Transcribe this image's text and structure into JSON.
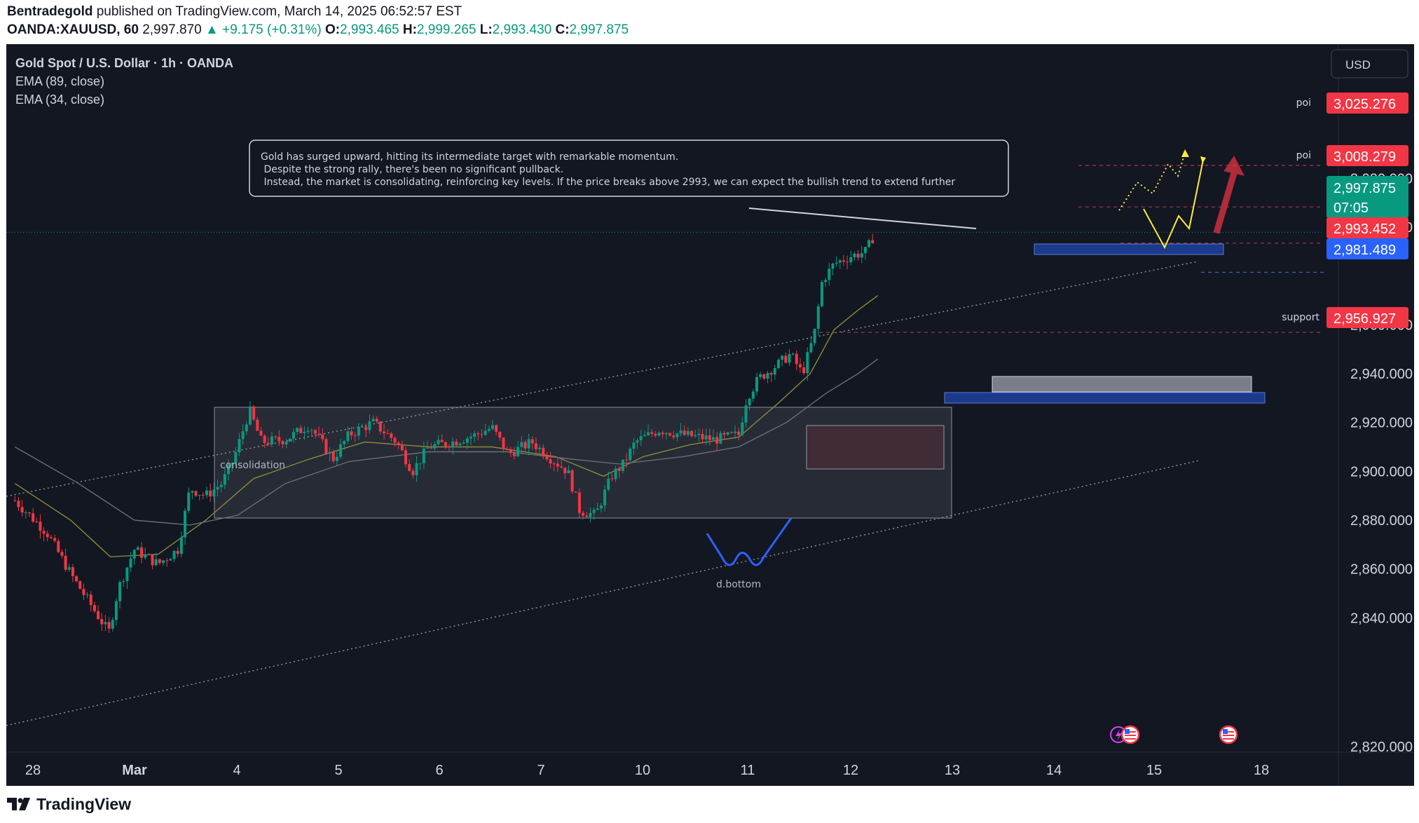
{
  "header": {
    "author": "Bentradegold",
    "published_text": "published on TradingView.com, March 14, 2025 06:52:57 EST",
    "symbol": "OANDA:XAUUSD, 60",
    "last": "2,997.870",
    "change": "▲ +9.175 (+0.31%)",
    "o_label": "O:",
    "o": "2,993.465",
    "h_label": "H:",
    "h": "2,999.265",
    "l_label": "L:",
    "l": "2,993.430",
    "c_label": "C:",
    "c": "2,997.875"
  },
  "legend": {
    "title": "Gold Spot / U.S. Dollar · 1h · OANDA",
    "ema1": "EMA (89, close)",
    "ema2": "EMA (34, close)"
  },
  "currency_button": "USD",
  "annotation": {
    "lines": [
      "Gold has surged upward, hitting its intermediate target with remarkable momentum.",
      " Despite the strong rally, there's been no significant pullback.",
      " Instead, the market is consolidating, reinforcing key levels. If the price breaks above 2993, we can expect the bullish trend to extend further"
    ]
  },
  "labels": {
    "consolidation": "consolidation",
    "d_bottom": "d.bottom",
    "poi1": "poi",
    "poi2": "poi",
    "support": "support"
  },
  "price_tags": {
    "poi_upper": "3,025.276",
    "poi_lower": "3,008.279",
    "current": "2,997.875",
    "countdown": "07:05",
    "level_2993": "2,993.452",
    "level_2981": "2,981.489",
    "support": "2,956.927"
  },
  "colors": {
    "background": "#131722",
    "up": "#089981",
    "down": "#f23645",
    "blue_zone": "#2962ff",
    "yellow_path": "#ffeb3b"
  },
  "footer": {
    "brand": "TradingView"
  },
  "chart_data": {
    "type": "candlestick",
    "title": "Gold Spot / U.S. Dollar · 1h · OANDA",
    "ylim": [
      2820,
      3030
    ],
    "y_ticks": [
      2840,
      2860,
      2880,
      2900,
      2920,
      2940
    ],
    "y_tick_labels": [
      "2,840.000",
      "2,860.000",
      "2,880.000",
      "2,900.000",
      "2,920.000",
      "2,940.000"
    ],
    "partial_tick_labels": [
      {
        "text": "3,020.000",
        "value": 3020
      },
      {
        "text": "3,000.000",
        "value": 3000
      },
      {
        "text": "2,960.000",
        "value": 2960
      },
      {
        "text": "2,820.000",
        "value": 2820
      }
    ],
    "x_ticks": [
      {
        "label": "28",
        "day": 0
      },
      {
        "label": "Mar",
        "day": 1
      },
      {
        "label": "4",
        "day": 2
      },
      {
        "label": "5",
        "day": 3
      },
      {
        "label": "6",
        "day": 4
      },
      {
        "label": "7",
        "day": 5
      },
      {
        "label": "10",
        "day": 6
      },
      {
        "label": "11",
        "day": 7
      },
      {
        "label": "12",
        "day": 8
      },
      {
        "label": "13",
        "day": 9
      },
      {
        "label": "14",
        "day": 10
      },
      {
        "label": "15",
        "day": 11
      },
      {
        "label": "18",
        "day": 12
      }
    ],
    "price_path": [
      [
        -0.2,
        2888
      ],
      [
        0.2,
        2875
      ],
      [
        0.5,
        2858
      ],
      [
        0.8,
        2843
      ],
      [
        0.98,
        2834
      ],
      [
        1.1,
        2852
      ],
      [
        1.3,
        2868
      ],
      [
        1.6,
        2862
      ],
      [
        1.85,
        2868
      ],
      [
        2.0,
        2893
      ],
      [
        2.2,
        2890
      ],
      [
        2.4,
        2895
      ],
      [
        2.55,
        2905
      ],
      [
        2.75,
        2925
      ],
      [
        2.9,
        2912
      ],
      [
        3.2,
        2913
      ],
      [
        3.5,
        2919
      ],
      [
        3.8,
        2905
      ],
      [
        4.0,
        2915
      ],
      [
        4.3,
        2920
      ],
      [
        4.6,
        2912
      ],
      [
        4.8,
        2900
      ],
      [
        5.0,
        2910
      ],
      [
        5.3,
        2912
      ],
      [
        5.6,
        2915
      ],
      [
        5.8,
        2918
      ],
      [
        6.0,
        2907
      ],
      [
        6.3,
        2912
      ],
      [
        6.55,
        2905
      ],
      [
        6.75,
        2900
      ],
      [
        6.9,
        2884
      ],
      [
        7.1,
        2882
      ],
      [
        7.3,
        2898
      ],
      [
        7.45,
        2903
      ],
      [
        7.6,
        2912
      ],
      [
        7.9,
        2917
      ],
      [
        8.2,
        2915
      ],
      [
        8.6,
        2913
      ],
      [
        8.9,
        2915
      ],
      [
        9.0,
        2930
      ],
      [
        9.15,
        2938
      ],
      [
        9.4,
        2944
      ],
      [
        9.55,
        2948
      ],
      [
        9.7,
        2940
      ],
      [
        9.85,
        2956
      ],
      [
        9.95,
        2978
      ],
      [
        10.1,
        2985
      ],
      [
        10.3,
        2988
      ],
      [
        10.5,
        2990
      ],
      [
        10.62,
        2998
      ]
    ],
    "ema_34": [
      [
        -0.2,
        2895
      ],
      [
        0.5,
        2880
      ],
      [
        1.0,
        2865
      ],
      [
        1.6,
        2866
      ],
      [
        2.2,
        2880
      ],
      [
        2.8,
        2897
      ],
      [
        3.5,
        2905
      ],
      [
        4.2,
        2912
      ],
      [
        5.0,
        2910
      ],
      [
        5.8,
        2910
      ],
      [
        6.6,
        2906
      ],
      [
        7.2,
        2898
      ],
      [
        7.7,
        2906
      ],
      [
        8.3,
        2911
      ],
      [
        8.9,
        2914
      ],
      [
        9.4,
        2928
      ],
      [
        9.8,
        2940
      ],
      [
        10.1,
        2958
      ],
      [
        10.4,
        2966
      ],
      [
        10.65,
        2972
      ]
    ],
    "ema_89": [
      [
        -0.2,
        2910
      ],
      [
        0.6,
        2895
      ],
      [
        1.3,
        2880
      ],
      [
        2.0,
        2878
      ],
      [
        2.6,
        2882
      ],
      [
        3.2,
        2895
      ],
      [
        4.0,
        2904
      ],
      [
        5.0,
        2908
      ],
      [
        6.0,
        2908
      ],
      [
        6.8,
        2905
      ],
      [
        7.4,
        2903
      ],
      [
        8.2,
        2906
      ],
      [
        8.9,
        2910
      ],
      [
        9.5,
        2920
      ],
      [
        10.0,
        2932
      ],
      [
        10.4,
        2940
      ],
      [
        10.65,
        2946
      ]
    ],
    "levels": [
      {
        "label": "poi",
        "value": 3025.276
      },
      {
        "label": "poi",
        "value": 3008.279
      },
      {
        "label": "",
        "value": 2993.452
      },
      {
        "label": "",
        "value": 2981.489
      },
      {
        "label": "support",
        "value": 2956.927
      }
    ],
    "grid": false,
    "legend_placement": "top-left"
  }
}
